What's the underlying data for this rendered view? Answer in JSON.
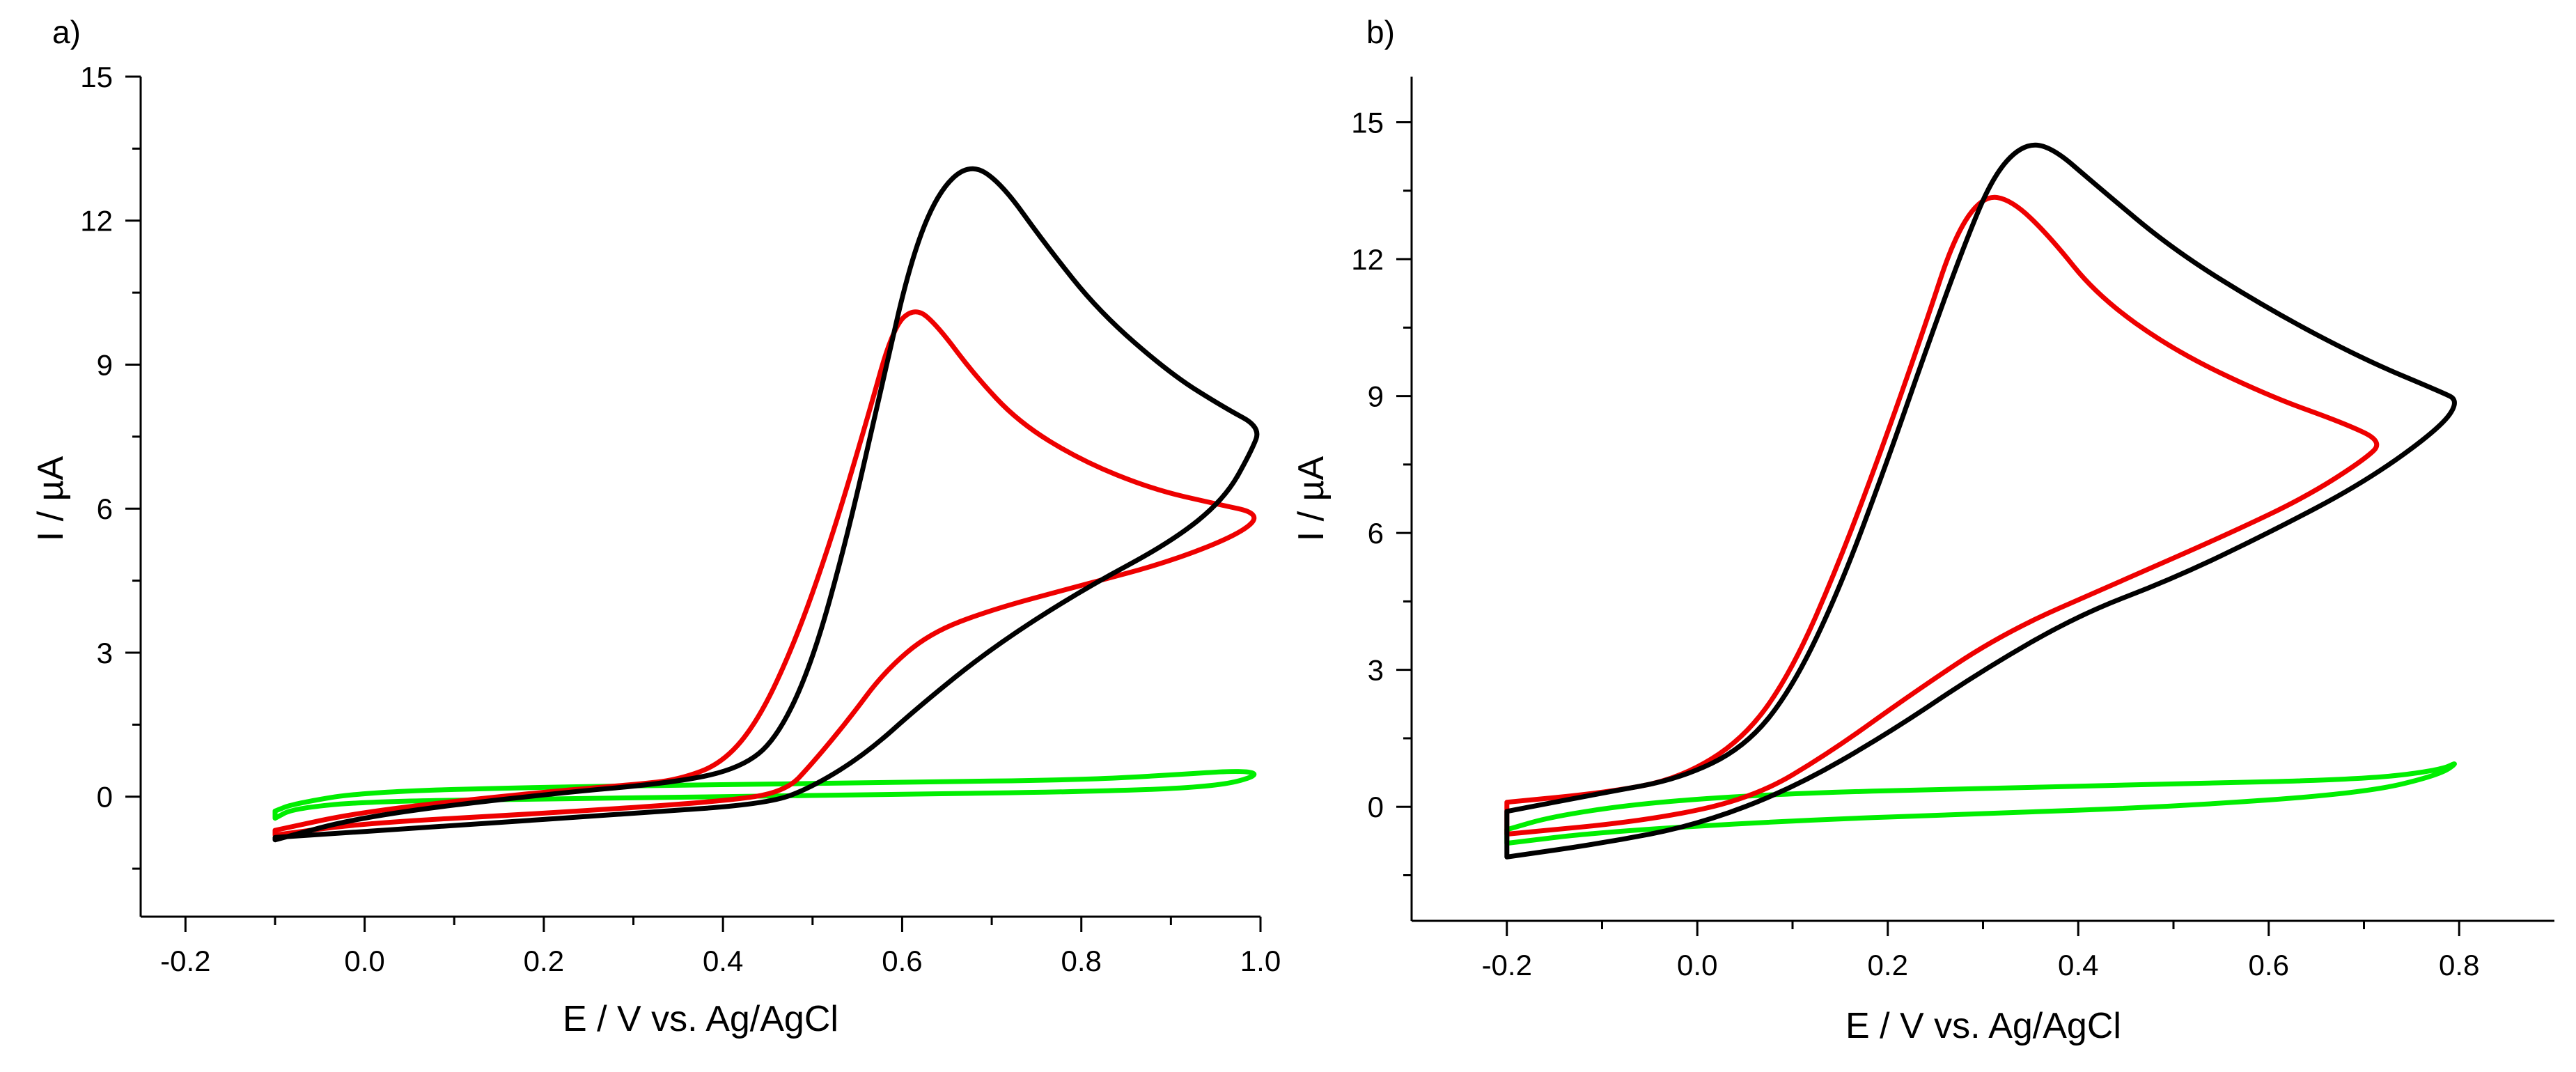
{
  "chart_data": [
    {
      "type": "line",
      "panel_label": "a)",
      "xlabel": "E / V vs. Ag/AgCl",
      "ylabel": "I / µA",
      "xlim": [
        -0.25,
        1.0
      ],
      "ylim": [
        -2.5,
        15
      ],
      "xticks": [
        -0.2,
        0.0,
        0.2,
        0.4,
        0.6,
        0.8,
        1.0
      ],
      "xtick_labels": [
        "-0.2",
        "0.0",
        "0.2",
        "0.4",
        "0.6",
        "0.8",
        "1.0"
      ],
      "yticks": [
        0,
        3,
        6,
        9,
        12,
        15
      ],
      "ytick_labels": [
        "0",
        "3",
        "6",
        "9",
        "12",
        "15"
      ],
      "series": [
        {
          "name": "green",
          "color": "#00ee00",
          "points": [
            [
              -0.1,
              -0.45
            ],
            [
              -0.08,
              -0.25
            ],
            [
              0.0,
              -0.1
            ],
            [
              0.2,
              -0.05
            ],
            [
              0.4,
              0.0
            ],
            [
              0.6,
              0.05
            ],
            [
              0.8,
              0.1
            ],
            [
              0.95,
              0.2
            ],
            [
              1.0,
              0.45
            ],
            [
              0.98,
              0.55
            ],
            [
              0.9,
              0.45
            ],
            [
              0.8,
              0.35
            ],
            [
              0.6,
              0.3
            ],
            [
              0.4,
              0.25
            ],
            [
              0.2,
              0.2
            ],
            [
              0.0,
              0.1
            ],
            [
              -0.08,
              -0.15
            ],
            [
              -0.1,
              -0.3
            ]
          ]
        },
        {
          "name": "red",
          "color": "#ee0000",
          "points": [
            [
              -0.1,
              -0.7
            ],
            [
              0.0,
              -0.3
            ],
            [
              0.2,
              0.1
            ],
            [
              0.3,
              0.25
            ],
            [
              0.35,
              0.35
            ],
            [
              0.4,
              0.7
            ],
            [
              0.44,
              1.6
            ],
            [
              0.48,
              3.2
            ],
            [
              0.52,
              5.3
            ],
            [
              0.56,
              7.8
            ],
            [
              0.59,
              9.8
            ],
            [
              0.615,
              10.2
            ],
            [
              0.64,
              9.8
            ],
            [
              0.68,
              8.8
            ],
            [
              0.73,
              7.8
            ],
            [
              0.8,
              7.0
            ],
            [
              0.88,
              6.4
            ],
            [
              0.95,
              6.1
            ],
            [
              1.0,
              5.9
            ],
            [
              0.98,
              5.5
            ],
            [
              0.9,
              4.9
            ],
            [
              0.8,
              4.4
            ],
            [
              0.7,
              3.9
            ],
            [
              0.63,
              3.4
            ],
            [
              0.58,
              2.6
            ],
            [
              0.54,
              1.6
            ],
            [
              0.5,
              0.7
            ],
            [
              0.47,
              0.1
            ],
            [
              0.4,
              -0.1
            ],
            [
              0.2,
              -0.35
            ],
            [
              0.0,
              -0.55
            ],
            [
              -0.1,
              -0.8
            ]
          ]
        },
        {
          "name": "black",
          "color": "#000000",
          "points": [
            [
              -0.1,
              -0.9
            ],
            [
              0.0,
              -0.4
            ],
            [
              0.2,
              0.05
            ],
            [
              0.35,
              0.3
            ],
            [
              0.42,
              0.6
            ],
            [
              0.46,
              1.2
            ],
            [
              0.5,
              2.8
            ],
            [
              0.54,
              5.5
            ],
            [
              0.58,
              8.8
            ],
            [
              0.61,
              11.2
            ],
            [
              0.64,
              12.6
            ],
            [
              0.675,
              13.2
            ],
            [
              0.71,
              12.8
            ],
            [
              0.76,
              11.5
            ],
            [
              0.82,
              10.1
            ],
            [
              0.9,
              8.8
            ],
            [
              0.96,
              8.1
            ],
            [
              1.0,
              7.7
            ],
            [
              0.99,
              7.2
            ],
            [
              0.96,
              6.2
            ],
            [
              0.9,
              5.3
            ],
            [
              0.8,
              4.3
            ],
            [
              0.7,
              3.1
            ],
            [
              0.62,
              1.9
            ],
            [
              0.56,
              0.9
            ],
            [
              0.5,
              0.2
            ],
            [
              0.45,
              -0.15
            ],
            [
              0.3,
              -0.35
            ],
            [
              0.1,
              -0.6
            ],
            [
              -0.1,
              -0.85
            ]
          ]
        }
      ]
    },
    {
      "type": "line",
      "panel_label": "b)",
      "xlabel": "E / V vs. Ag/AgCl",
      "ylabel": "I / µA",
      "xlim": [
        -0.3,
        0.9
      ],
      "ylim": [
        -2.5,
        16
      ],
      "xticks": [
        -0.2,
        0.0,
        0.2,
        0.4,
        0.6,
        0.8
      ],
      "xtick_labels": [
        "-0.2",
        "0.0",
        "0.2",
        "0.4",
        "0.6",
        "0.8"
      ],
      "yticks": [
        0,
        3,
        6,
        9,
        12,
        15
      ],
      "ytick_labels": [
        "0",
        "3",
        "6",
        "9",
        "12",
        "15"
      ],
      "series": [
        {
          "name": "green",
          "color": "#00ee00",
          "points": [
            [
              -0.2,
              -0.5
            ],
            [
              -0.15,
              -0.2
            ],
            [
              -0.05,
              0.1
            ],
            [
              0.1,
              0.3
            ],
            [
              0.3,
              0.4
            ],
            [
              0.5,
              0.5
            ],
            [
              0.7,
              0.6
            ],
            [
              0.78,
              0.8
            ],
            [
              0.8,
              1.0
            ],
            [
              0.78,
              0.7
            ],
            [
              0.7,
              0.3
            ],
            [
              0.5,
              0.0
            ],
            [
              0.3,
              -0.15
            ],
            [
              0.1,
              -0.3
            ],
            [
              -0.1,
              -0.55
            ],
            [
              -0.2,
              -0.8
            ]
          ]
        },
        {
          "name": "red",
          "color": "#ee0000",
          "points": [
            [
              -0.2,
              0.1
            ],
            [
              -0.1,
              0.3
            ],
            [
              -0.02,
              0.6
            ],
            [
              0.05,
              1.5
            ],
            [
              0.1,
              3.0
            ],
            [
              0.15,
              5.4
            ],
            [
              0.2,
              8.2
            ],
            [
              0.24,
              10.6
            ],
            [
              0.27,
              12.5
            ],
            [
              0.3,
              13.4
            ],
            [
              0.33,
              13.3
            ],
            [
              0.37,
              12.5
            ],
            [
              0.42,
              11.2
            ],
            [
              0.5,
              10.0
            ],
            [
              0.6,
              9.0
            ],
            [
              0.68,
              8.4
            ],
            [
              0.72,
              8.0
            ],
            [
              0.7,
              7.6
            ],
            [
              0.64,
              6.8
            ],
            [
              0.56,
              6.0
            ],
            [
              0.44,
              4.9
            ],
            [
              0.32,
              3.8
            ],
            [
              0.22,
              2.4
            ],
            [
              0.14,
              1.2
            ],
            [
              0.06,
              0.2
            ],
            [
              -0.05,
              -0.3
            ],
            [
              -0.2,
              -0.6
            ]
          ]
        },
        {
          "name": "black",
          "color": "#000000",
          "points": [
            [
              -0.2,
              -0.1
            ],
            [
              -0.1,
              0.3
            ],
            [
              -0.02,
              0.6
            ],
            [
              0.05,
              1.3
            ],
            [
              0.1,
              2.6
            ],
            [
              0.15,
              4.8
            ],
            [
              0.2,
              7.6
            ],
            [
              0.24,
              10.0
            ],
            [
              0.28,
              12.3
            ],
            [
              0.31,
              13.8
            ],
            [
              0.34,
              14.5
            ],
            [
              0.37,
              14.5
            ],
            [
              0.42,
              13.6
            ],
            [
              0.5,
              12.2
            ],
            [
              0.6,
              10.9
            ],
            [
              0.7,
              9.8
            ],
            [
              0.78,
              9.1
            ],
            [
              0.8,
              8.9
            ],
            [
              0.78,
              8.3
            ],
            [
              0.7,
              7.1
            ],
            [
              0.6,
              6.0
            ],
            [
              0.5,
              5.0
            ],
            [
              0.4,
              4.2
            ],
            [
              0.3,
              3.0
            ],
            [
              0.2,
              1.6
            ],
            [
              0.1,
              0.4
            ],
            [
              0.0,
              -0.4
            ],
            [
              -0.1,
              -0.8
            ],
            [
              -0.2,
              -1.1
            ]
          ]
        }
      ]
    }
  ]
}
